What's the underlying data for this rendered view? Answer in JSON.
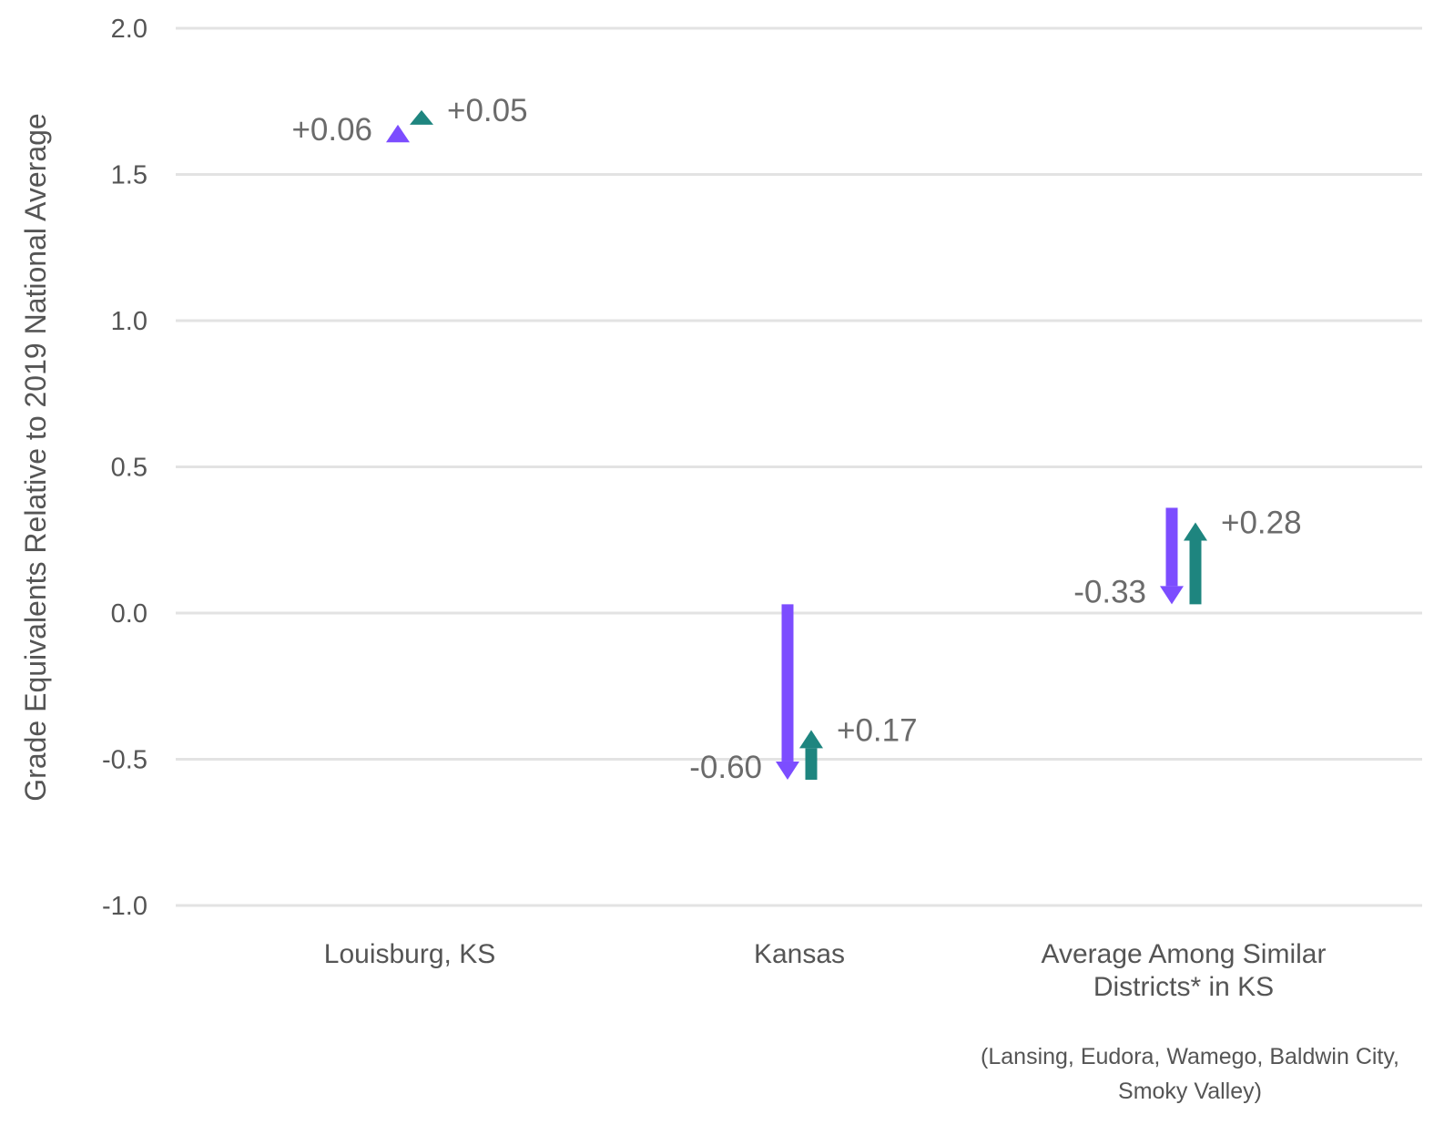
{
  "chart_data": {
    "type": "arrow",
    "ylabel": "Grade Equivalents Relative to 2019 National Average",
    "ylim": [
      -1.0,
      2.0
    ],
    "yticks": [
      {
        "value": 2.0,
        "label": "2.0"
      },
      {
        "value": 1.5,
        "label": "1.5"
      },
      {
        "value": 1.0,
        "label": "1.0"
      },
      {
        "value": 0.5,
        "label": "0.5"
      },
      {
        "value": 0.0,
        "label": "0.0"
      },
      {
        "value": -0.5,
        "label": "-0.5"
      },
      {
        "value": -1.0,
        "label": "-1.0"
      }
    ],
    "grid": true,
    "colors": {
      "purple": "#7c4dff",
      "teal": "#1e857f"
    },
    "categories": [
      {
        "label_lines": [
          "Louisburg, KS"
        ],
        "note_lines": [],
        "arrows": [
          {
            "color": "purple",
            "start": 1.61,
            "end": 1.67,
            "label": "+0.06",
            "label_side": "left"
          },
          {
            "color": "teal",
            "start": 1.67,
            "end": 1.72,
            "label": "+0.05",
            "label_side": "right"
          }
        ]
      },
      {
        "label_lines": [
          "Kansas"
        ],
        "note_lines": [],
        "arrows": [
          {
            "color": "purple",
            "start": 0.03,
            "end": -0.57,
            "label": "-0.60",
            "label_side": "left"
          },
          {
            "color": "teal",
            "start": -0.57,
            "end": -0.4,
            "label": "+0.17",
            "label_side": "right"
          }
        ]
      },
      {
        "label_lines": [
          "Average Among Similar",
          "Districts* in KS"
        ],
        "note_lines": [
          "(Lansing, Eudora, Wamego, Baldwin City,",
          "Smoky Valley)"
        ],
        "arrows": [
          {
            "color": "purple",
            "start": 0.36,
            "end": 0.03,
            "label": "-0.33",
            "label_side": "left"
          },
          {
            "color": "teal",
            "start": 0.03,
            "end": 0.31,
            "label": "+0.28",
            "label_side": "right"
          }
        ]
      }
    ]
  }
}
